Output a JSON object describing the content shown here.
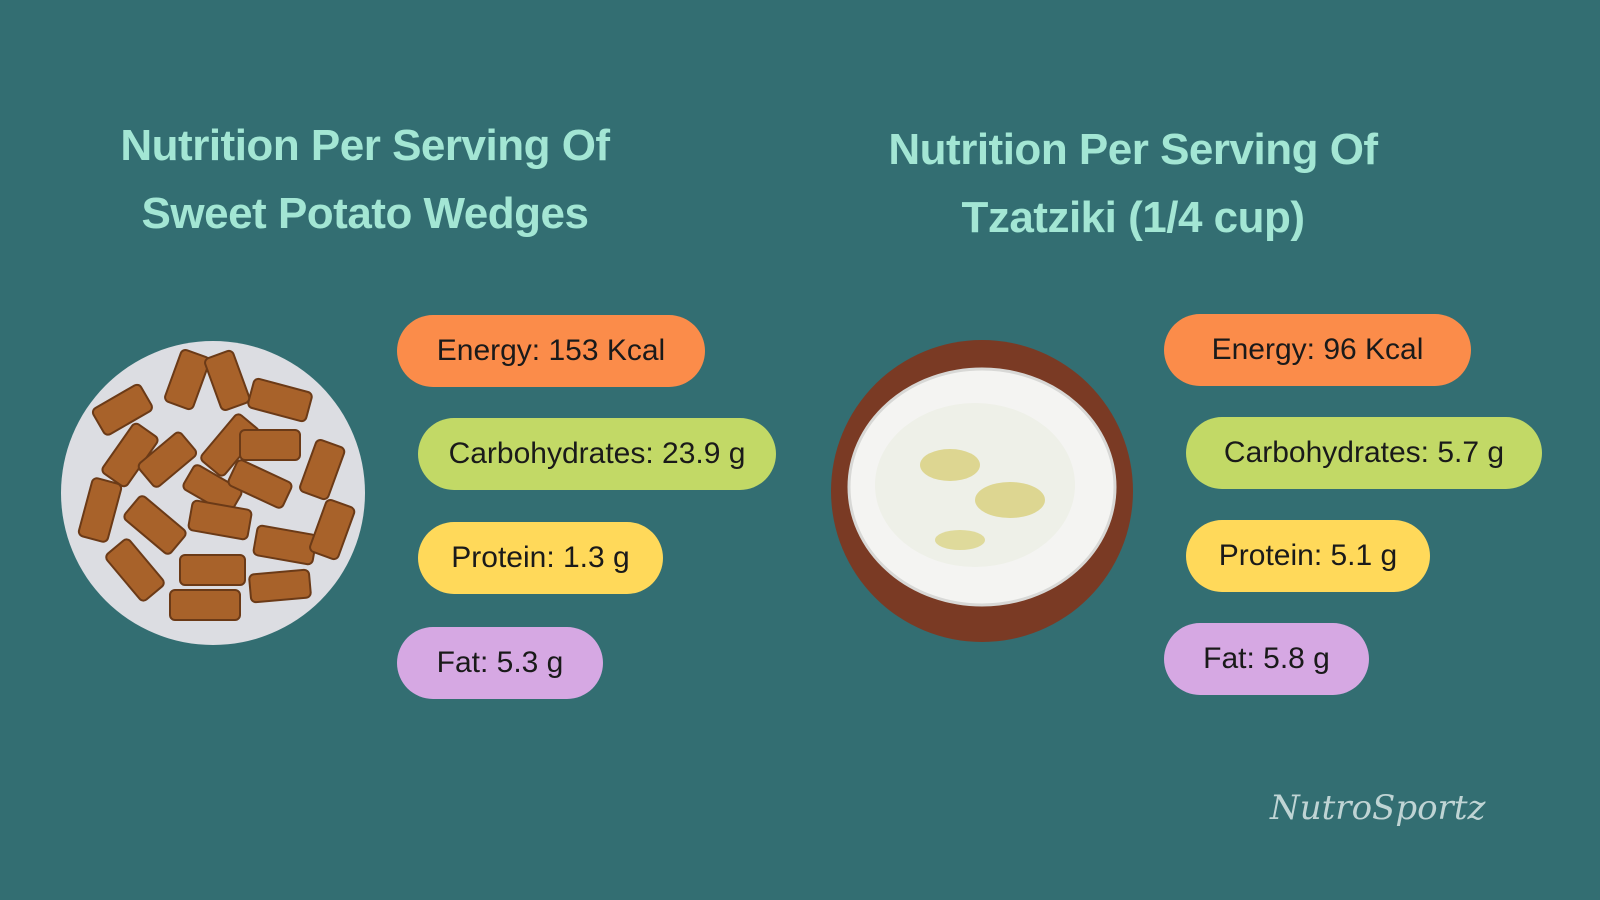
{
  "panels": [
    {
      "title": [
        "Nutrition Per Serving Of",
        "Sweet Potato Wedges"
      ],
      "items": [
        "Energy: 153 Kcal",
        "Carbohydrates: 23.9 g",
        "Protein: 1.3 g",
        "Fat: 5.3 g"
      ]
    },
    {
      "title": [
        "Nutrition Per Serving Of",
        "Tzatziki (1/4 cup)"
      ],
      "items": [
        "Energy: 96 Kcal",
        "Carbohydrates: 5.7 g",
        "Protein: 5.1 g",
        "Fat: 5.8 g"
      ]
    }
  ],
  "watermark": "NutroSportz"
}
